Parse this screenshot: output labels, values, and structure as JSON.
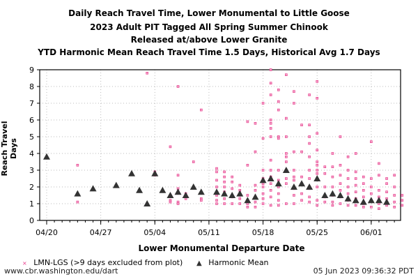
{
  "chart_data": {
    "type": "scatter",
    "title": [
      "Daily Reach Travel Time, Lower Monumental to Little Goose",
      "2023 Adult PIT Tagged All Spring Summer Chinook",
      "Released at/above Lower Granite",
      "YTD Harmonic Mean Reach Travel Time 1.5 Days, Historical Avg 1.7 Days"
    ],
    "xlabel": "Lower Monumental Departure Date",
    "ylabel": "Reach Travel Days",
    "xlim": [
      "2023-04-19",
      "2023-06-04"
    ],
    "ylim": [
      0,
      9
    ],
    "x_ticks": [
      "04/20",
      "04/27",
      "05/04",
      "05/11",
      "05/18",
      "05/25",
      "06/01"
    ],
    "x_tick_dates": [
      "2023-04-20",
      "2023-04-27",
      "2023-05-04",
      "2023-05-11",
      "2023-05-18",
      "2023-05-25",
      "2023-06-01"
    ],
    "y_ticks": [
      0,
      1,
      2,
      3,
      4,
      5,
      6,
      7,
      8,
      9
    ],
    "grid": true,
    "legend_placement": "bottom",
    "series": [
      {
        "name": "LMN-LGS (>9 days excluded from plot)",
        "marker": "x",
        "color": "#e8388a",
        "points": [
          [
            "2023-04-24",
            [
              3.3,
              1.1
            ]
          ],
          [
            "2023-05-03",
            [
              8.8,
              1.0
            ]
          ],
          [
            "2023-05-04",
            [
              2.9,
              2.7
            ]
          ],
          [
            "2023-05-06",
            [
              4.4,
              1.2,
              1.1
            ]
          ],
          [
            "2023-05-07",
            [
              8.0,
              2.7,
              1.9,
              1.1,
              1.0
            ]
          ],
          [
            "2023-05-08",
            [
              1.6,
              1.3
            ]
          ],
          [
            "2023-05-09",
            [
              3.5
            ]
          ],
          [
            "2023-05-10",
            [
              6.6,
              1.3,
              1.2
            ]
          ],
          [
            "2023-05-12",
            [
              3.1,
              2.9,
              2.4,
              2.0,
              1.5,
              1.2,
              1.0
            ]
          ],
          [
            "2023-05-13",
            [
              2.9,
              2.6,
              2.3,
              2.0,
              1.7,
              1.3,
              1.0
            ]
          ],
          [
            "2023-05-14",
            [
              2.6,
              2.3,
              1.9,
              1.4,
              1.0
            ]
          ],
          [
            "2023-05-15",
            [
              2.1,
              1.8,
              1.5,
              1.3,
              1.0
            ]
          ],
          [
            "2023-05-16",
            [
              5.9,
              3.3,
              1.5,
              1.2,
              1.0,
              0.8
            ]
          ],
          [
            "2023-05-17",
            [
              5.8,
              4.1,
              2.1,
              1.8,
              1.4,
              1.1,
              0.8
            ]
          ],
          [
            "2023-05-18",
            [
              7.0,
              4.9,
              3.0,
              2.5,
              2.2,
              2.0,
              1.6,
              1.3,
              1.0
            ]
          ],
          [
            "2023-05-19",
            [
              9.0,
              8.2,
              7.5,
              6.0,
              5.8,
              5.5,
              5.0,
              3.6,
              3.0,
              2.6,
              2.2,
              1.8,
              1.4,
              0.9
            ]
          ],
          [
            "2023-05-20",
            [
              7.8,
              7.1,
              6.6,
              5.0,
              4.9,
              3.0,
              2.4,
              2.0,
              1.6,
              1.2,
              0.9
            ]
          ],
          [
            "2023-05-21",
            [
              8.7,
              6.1,
              5.0,
              4.0,
              3.8,
              3.5,
              3.0,
              2.5,
              2.2,
              1.0
            ]
          ],
          [
            "2023-05-22",
            [
              7.7,
              7.0,
              4.1,
              3.0,
              2.6,
              2.4,
              1.9,
              1.5,
              1.0
            ]
          ],
          [
            "2023-05-23",
            [
              5.7,
              4.1,
              2.6,
              2.2,
              1.6,
              1.2
            ]
          ],
          [
            "2023-05-24",
            [
              7.5,
              5.7,
              5.0,
              4.6,
              3.8,
              3.0,
              2.5,
              1.9,
              1.4,
              1.1
            ]
          ],
          [
            "2023-05-25",
            [
              8.3,
              7.3,
              5.2,
              4.2,
              3.5,
              3.3,
              3.0,
              2.8,
              2.5,
              2.0,
              1.2,
              0.9
            ]
          ],
          [
            "2023-05-26",
            [
              3.2,
              2.8,
              2.0,
              1.4,
              1.1
            ]
          ],
          [
            "2023-05-27",
            [
              4.0,
              3.2,
              2.6,
              2.0,
              1.5,
              1.1,
              0.9
            ]
          ],
          [
            "2023-05-28",
            [
              5.0,
              3.3,
              2.7,
              2.2,
              1.8,
              1.4,
              1.0
            ]
          ],
          [
            "2023-05-29",
            [
              3.8,
              3.0,
              2.5,
              2.0,
              1.6,
              1.2,
              0.9
            ]
          ],
          [
            "2023-05-30",
            [
              4.0,
              2.9,
              2.5,
              2.1,
              1.7,
              1.3,
              0.9
            ]
          ],
          [
            "2023-05-31",
            [
              2.6,
              2.2,
              1.8,
              1.4,
              1.0,
              0.8
            ]
          ],
          [
            "2023-06-01",
            [
              4.7,
              2.5,
              2.0,
              1.6,
              1.2,
              0.8
            ]
          ],
          [
            "2023-06-02",
            [
              3.4,
              2.7,
              1.8,
              1.4,
              1.0,
              0.7
            ]
          ],
          [
            "2023-06-03",
            [
              2.5,
              2.2,
              1.7,
              1.3,
              0.9
            ]
          ],
          [
            "2023-06-04",
            [
              2.7,
              2.0,
              1.5,
              1.1,
              0.8
            ]
          ],
          [
            "2023-06-05",
            [
              1.5,
              1.2,
              0.9
            ]
          ]
        ]
      },
      {
        "name": "Harmonic Mean",
        "marker": "triangle",
        "color": "#333333",
        "points": [
          [
            "2023-04-20",
            3.8
          ],
          [
            "2023-04-24",
            1.6
          ],
          [
            "2023-04-26",
            1.9
          ],
          [
            "2023-04-29",
            2.1
          ],
          [
            "2023-05-01",
            2.8
          ],
          [
            "2023-05-02",
            1.8
          ],
          [
            "2023-05-03",
            1.0
          ],
          [
            "2023-05-04",
            2.8
          ],
          [
            "2023-05-05",
            1.8
          ],
          [
            "2023-05-06",
            1.5
          ],
          [
            "2023-05-07",
            1.7
          ],
          [
            "2023-05-08",
            1.5
          ],
          [
            "2023-05-09",
            2.0
          ],
          [
            "2023-05-10",
            1.7
          ],
          [
            "2023-05-12",
            1.7
          ],
          [
            "2023-05-13",
            1.6
          ],
          [
            "2023-05-14",
            1.5
          ],
          [
            "2023-05-15",
            1.6
          ],
          [
            "2023-05-16",
            1.2
          ],
          [
            "2023-05-17",
            1.4
          ],
          [
            "2023-05-18",
            2.4
          ],
          [
            "2023-05-19",
            2.5
          ],
          [
            "2023-05-20",
            2.2
          ],
          [
            "2023-05-21",
            3.0
          ],
          [
            "2023-05-22",
            2.0
          ],
          [
            "2023-05-23",
            2.2
          ],
          [
            "2023-05-24",
            2.0
          ],
          [
            "2023-05-25",
            2.5
          ],
          [
            "2023-05-26",
            1.5
          ],
          [
            "2023-05-27",
            1.6
          ],
          [
            "2023-05-28",
            1.5
          ],
          [
            "2023-05-29",
            1.3
          ],
          [
            "2023-05-30",
            1.2
          ],
          [
            "2023-05-31",
            1.1
          ],
          [
            "2023-06-01",
            1.2
          ],
          [
            "2023-06-02",
            1.2
          ],
          [
            "2023-06-03",
            1.1
          ]
        ]
      }
    ]
  },
  "footer": {
    "source": "www.cbr.washington.edu/dart",
    "timestamp": "05 Jun 2023 09:36:32 PDT"
  }
}
